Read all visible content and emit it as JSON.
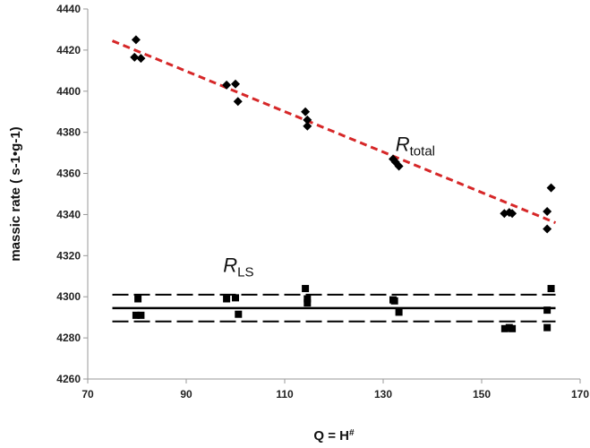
{
  "chart_data": {
    "type": "scatter",
    "title": "",
    "xlabel": "Q = H",
    "xlabel_sup": "#",
    "ylabel": "massic rate ( s-1•g-1)",
    "xlim": [
      70,
      170
    ],
    "ylim": [
      4260,
      4440
    ],
    "xticks": [
      70,
      90,
      110,
      130,
      150,
      170
    ],
    "yticks": [
      4260,
      4280,
      4300,
      4320,
      4340,
      4360,
      4380,
      4400,
      4420,
      4440
    ],
    "grid": false,
    "series": [
      {
        "name": "R_total",
        "marker": "diamond",
        "color": "#000000",
        "points": [
          [
            79.8,
            4425
          ],
          [
            79.5,
            4416.5
          ],
          [
            80.8,
            4416
          ],
          [
            98.2,
            4403
          ],
          [
            100,
            4403.5
          ],
          [
            100.5,
            4395
          ],
          [
            114.2,
            4390
          ],
          [
            114.6,
            4386
          ],
          [
            114.6,
            4383
          ],
          [
            132,
            4367
          ],
          [
            132.5,
            4365.5
          ],
          [
            133.2,
            4363.5
          ],
          [
            154.6,
            4340.5
          ],
          [
            155.6,
            4341
          ],
          [
            156.2,
            4340.5
          ],
          [
            163.3,
            4341.5
          ],
          [
            163.3,
            4333
          ],
          [
            164.1,
            4353
          ]
        ],
        "fit": {
          "x": [
            75,
            165
          ],
          "y": [
            4424.5,
            4336
          ],
          "color": "#d62728",
          "style": "dashed"
        }
      },
      {
        "name": "R_LS",
        "marker": "square",
        "color": "#000000",
        "points": [
          [
            80.2,
            4299
          ],
          [
            79.8,
            4291
          ],
          [
            80.8,
            4291
          ],
          [
            98.2,
            4299
          ],
          [
            100,
            4299.5
          ],
          [
            100.6,
            4291.5
          ],
          [
            114.2,
            4304
          ],
          [
            114.6,
            4299
          ],
          [
            114.6,
            4297
          ],
          [
            132,
            4298.5
          ],
          [
            132.3,
            4298
          ],
          [
            133.2,
            4292.5
          ],
          [
            154.7,
            4284.5
          ],
          [
            155.6,
            4285
          ],
          [
            156.2,
            4284.5
          ],
          [
            163.3,
            4293.5
          ],
          [
            163.3,
            4285
          ],
          [
            164.1,
            4304
          ]
        ],
        "mean": 4294.5,
        "band": [
          4288,
          4301
        ]
      }
    ],
    "annotations": [
      {
        "label": "R",
        "sub": "total",
        "x": 132.5,
        "y": 4371
      },
      {
        "label": "R",
        "sub": "LS",
        "x": 97.5,
        "y": 4312
      }
    ]
  }
}
